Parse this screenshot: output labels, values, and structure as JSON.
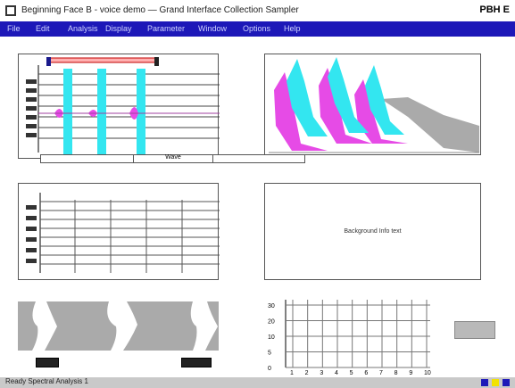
{
  "titlebar": {
    "title": "Beginning Face B - voice demo — Grand Interface  Collection  Sampler",
    "brand": "PBH E"
  },
  "menu": {
    "items": [
      "File",
      "Edit",
      "Analysis",
      "Display",
      "Parameter",
      "Window",
      "Options",
      "Help"
    ]
  },
  "panels": {
    "tabs": [
      "",
      "Wave",
      ""
    ],
    "message_text": "Background Info text"
  },
  "bottom_chart": {
    "y_ticks": [
      "30",
      "20",
      "10",
      "5",
      "0"
    ],
    "x_ticks": [
      "1",
      "2",
      "3",
      "4",
      "5",
      "6",
      "7",
      "8",
      "9",
      "10"
    ]
  },
  "statusbar": {
    "text": "Ready  Spectral Analysis  1"
  },
  "colors": {
    "menubar": "#1d18b8",
    "cyan": "#33e6f0",
    "magenta": "#e64be6",
    "red_marker": "#c00000",
    "slider_fill": "#ffb0b0"
  }
}
